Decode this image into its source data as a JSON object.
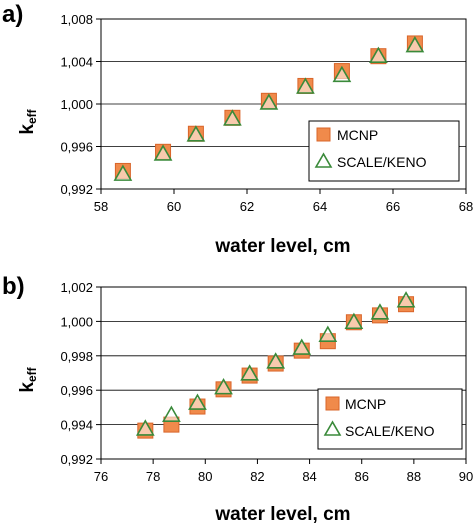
{
  "chart_data": [
    {
      "type": "scatter",
      "panel_label": "a)",
      "xlabel": "water level, cm",
      "ylabel": "k",
      "ylabel_sub": "eff",
      "xlim": [
        58,
        68
      ],
      "ylim": [
        0.992,
        1.008
      ],
      "x_ticks": [
        "58",
        "60",
        "62",
        "64",
        "66",
        "68"
      ],
      "y_ticks": [
        "0,992",
        "0,996",
        "1,000",
        "1,004",
        "1,008"
      ],
      "grid": "horizontal",
      "legend": "bottom-right",
      "series": [
        {
          "name": "MCNP",
          "marker": "square",
          "color": "#f08a4b",
          "x": [
            58.6,
            59.7,
            60.6,
            61.6,
            62.6,
            63.6,
            64.6,
            65.6,
            66.6
          ],
          "y": [
            0.9937,
            0.9955,
            0.9972,
            0.9987,
            1.0003,
            1.0017,
            1.0031,
            1.0045,
            1.0057
          ]
        },
        {
          "name": "SCALE/KENO",
          "marker": "triangle",
          "color": "#3a8a3a",
          "x": [
            58.6,
            59.7,
            60.6,
            61.6,
            62.6,
            63.6,
            64.6,
            65.6,
            66.6
          ],
          "y": [
            0.9934,
            0.9953,
            0.9971,
            0.9986,
            1.0001,
            1.0016,
            1.0027,
            1.0045,
            1.0055
          ]
        }
      ]
    },
    {
      "type": "scatter",
      "panel_label": "b)",
      "xlabel": "water level, cm",
      "ylabel": "k",
      "ylabel_sub": "eff",
      "xlim": [
        76,
        90
      ],
      "ylim": [
        0.992,
        1.002
      ],
      "x_ticks": [
        "76",
        "78",
        "80",
        "82",
        "84",
        "86",
        "88",
        "90"
      ],
      "y_ticks": [
        "0,992",
        "0,994",
        "0,996",
        "0,998",
        "1,000",
        "1,002"
      ],
      "grid": "horizontal",
      "legend": "bottom-right",
      "series": [
        {
          "name": "MCNP",
          "marker": "square",
          "color": "#f08a4b",
          "x": [
            77.7,
            78.7,
            79.7,
            80.7,
            81.7,
            82.7,
            83.7,
            84.7,
            85.7,
            86.7,
            87.7
          ],
          "y": [
            0.99365,
            0.994,
            0.99505,
            0.99605,
            0.99685,
            0.99755,
            0.9983,
            0.99885,
            0.99995,
            1.00035,
            1.001
          ]
        },
        {
          "name": "SCALE/KENO",
          "marker": "triangle",
          "color": "#3a8a3a",
          "x": [
            77.7,
            78.7,
            79.7,
            80.7,
            81.7,
            82.7,
            83.7,
            84.7,
            85.7,
            86.7,
            87.7
          ],
          "y": [
            0.99375,
            0.99455,
            0.99525,
            0.99615,
            0.99695,
            0.99765,
            0.99845,
            0.9992,
            0.99995,
            1.0005,
            1.0012
          ]
        }
      ]
    }
  ]
}
